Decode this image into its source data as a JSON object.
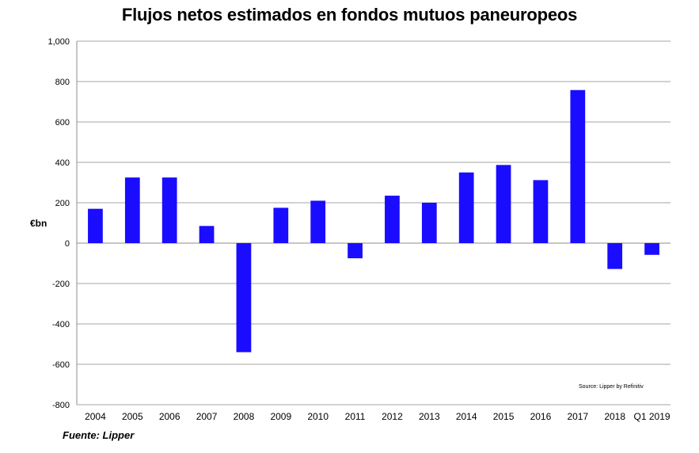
{
  "chart_data": {
    "type": "bar",
    "title": "Flujos netos estimados en fondos mutuos paneuropeos",
    "ylabel": "€bn",
    "xlabel": "",
    "ylim": [
      -800,
      1000
    ],
    "yticks": [
      "1,000",
      "800",
      "600",
      "400",
      "200",
      "0",
      "-200",
      "-400",
      "-600",
      "-800"
    ],
    "ytick_values": [
      1000,
      800,
      600,
      400,
      200,
      0,
      -200,
      -400,
      -600,
      -800
    ],
    "categories": [
      "2004",
      "2005",
      "2006",
      "2007",
      "2008",
      "2009",
      "2010",
      "2011",
      "2012",
      "2013",
      "2014",
      "2015",
      "2016",
      "2017",
      "2018",
      "Q1 2019"
    ],
    "values": [
      170,
      325,
      325,
      85,
      -540,
      175,
      210,
      -75,
      235,
      200,
      350,
      387,
      312,
      758,
      -128,
      -58
    ],
    "bar_color": "#1a0cff",
    "grid": true,
    "source_note": "Source: Lipper by Refinitiv"
  },
  "footer": {
    "note": "Fuente: Lipper"
  }
}
